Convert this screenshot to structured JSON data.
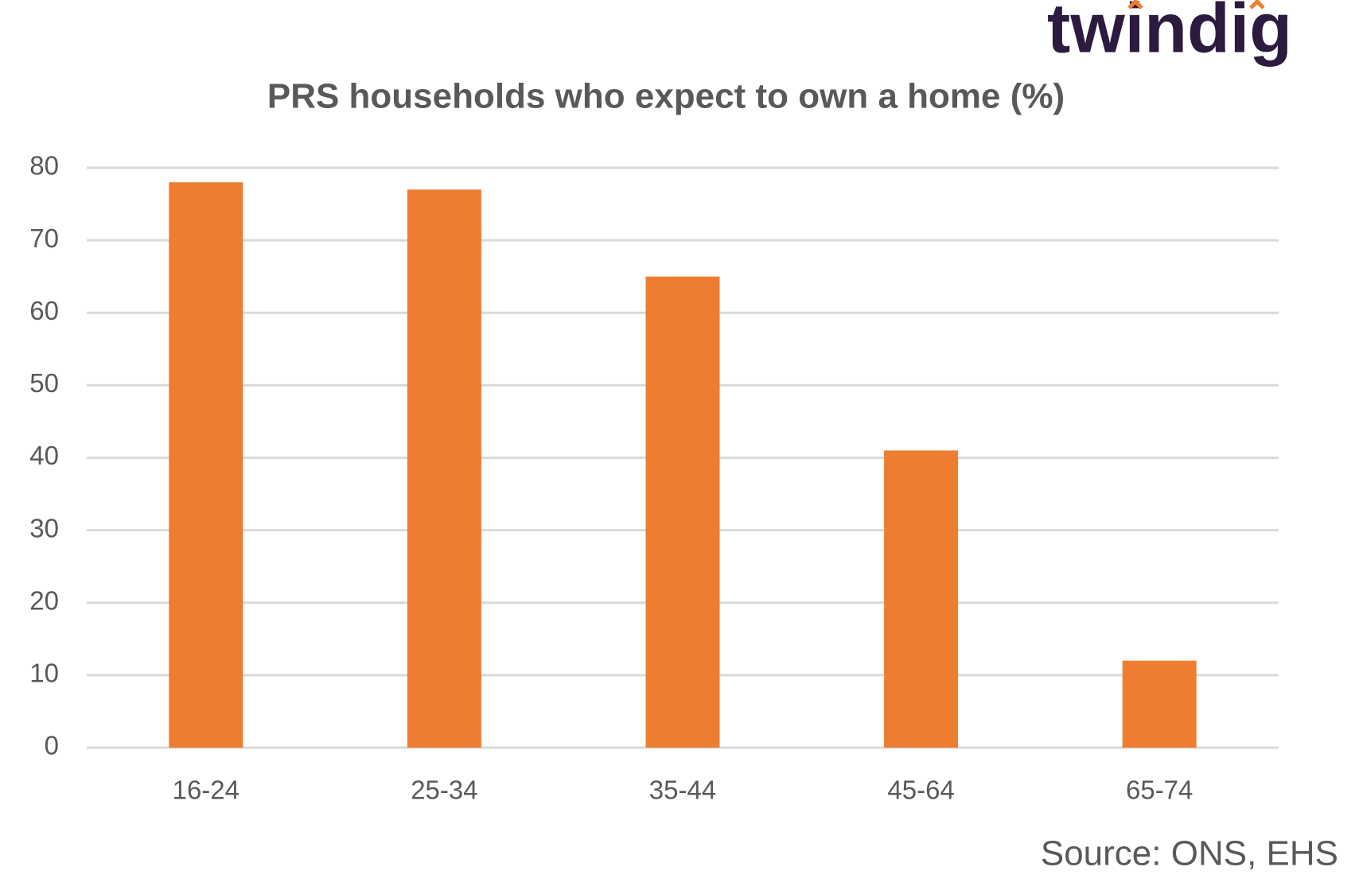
{
  "logo": "twindig",
  "source": "Source: ONS, EHS",
  "chart_data": {
    "type": "bar",
    "title": "PRS households  who expect to own a home (%)",
    "categories": [
      "16-24",
      "25-34",
      "35-44",
      "45-64",
      "65-74"
    ],
    "values": [
      78,
      77,
      65,
      41,
      12
    ],
    "color": "#ed7d31",
    "ylim": [
      0,
      80
    ],
    "yticks": [
      0,
      10,
      20,
      30,
      40,
      50,
      60,
      70,
      80
    ],
    "grid": true
  }
}
